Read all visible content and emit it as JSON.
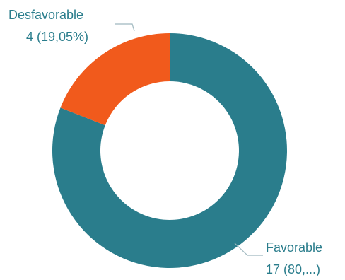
{
  "colors": {
    "favorable": "#2a7d8c",
    "desfavorable": "#f15a1c",
    "label_text": "#2a7d8c",
    "leader_line": "#9fb8bf"
  },
  "chart_data": {
    "type": "pie",
    "style": "donut",
    "title": "",
    "legend": "none",
    "slices": [
      {
        "label": "Favorable",
        "value": 17,
        "percent_text": "80,...",
        "value_text": "17 (80,...)",
        "color": "#2a7d8c"
      },
      {
        "label": "Desfavorable",
        "value": 4,
        "percent_text": "19,05%",
        "value_text": "4 (19,05%)",
        "color": "#f15a1c"
      }
    ]
  }
}
